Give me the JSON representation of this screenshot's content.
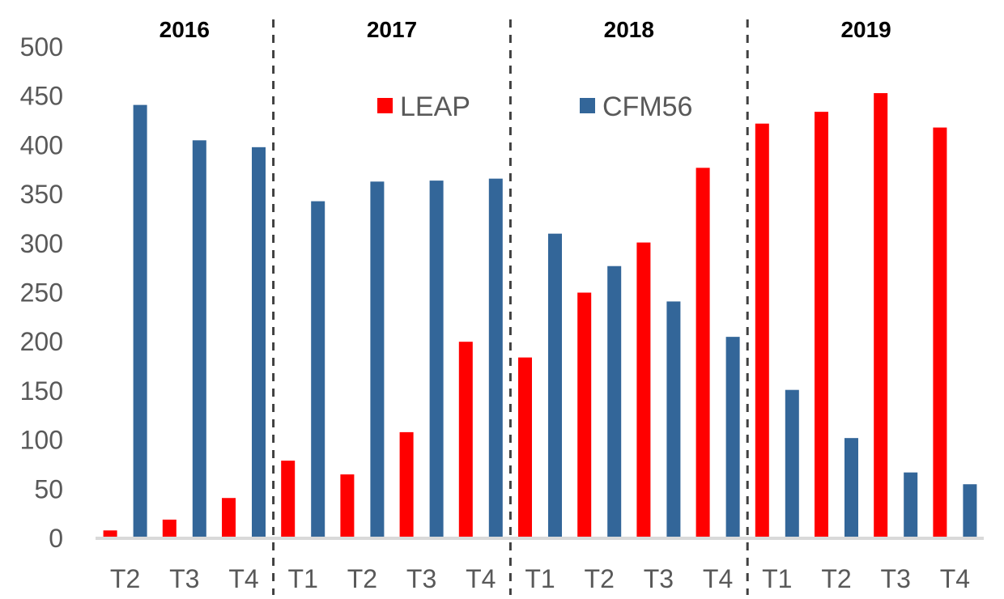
{
  "chart_data": {
    "type": "bar",
    "title": "",
    "xlabel": "",
    "ylabel": "",
    "ylim": [
      0,
      500
    ],
    "yticks": [
      0,
      50,
      100,
      150,
      200,
      250,
      300,
      350,
      400,
      450,
      500
    ],
    "grid": false,
    "legend_position": "top-center",
    "categories": [
      "T2",
      "T3",
      "T4",
      "T1",
      "T2",
      "T3",
      "T4",
      "T1",
      "T2",
      "T3",
      "T4",
      "T1",
      "T2",
      "T3",
      "T4"
    ],
    "groups": [
      {
        "label": "2016",
        "start": 0,
        "count": 3
      },
      {
        "label": "2017",
        "start": 3,
        "count": 4
      },
      {
        "label": "2018",
        "start": 7,
        "count": 4
      },
      {
        "label": "2019",
        "start": 11,
        "count": 4
      }
    ],
    "series": [
      {
        "name": "LEAP",
        "color": "#ff0000",
        "values": [
          8,
          19,
          41,
          79,
          65,
          108,
          200,
          184,
          250,
          301,
          377,
          422,
          434,
          453,
          418
        ]
      },
      {
        "name": "CFM56",
        "color": "#336699",
        "values": [
          441,
          405,
          398,
          343,
          363,
          364,
          366,
          310,
          277,
          241,
          205,
          151,
          102,
          67,
          55
        ]
      }
    ]
  }
}
